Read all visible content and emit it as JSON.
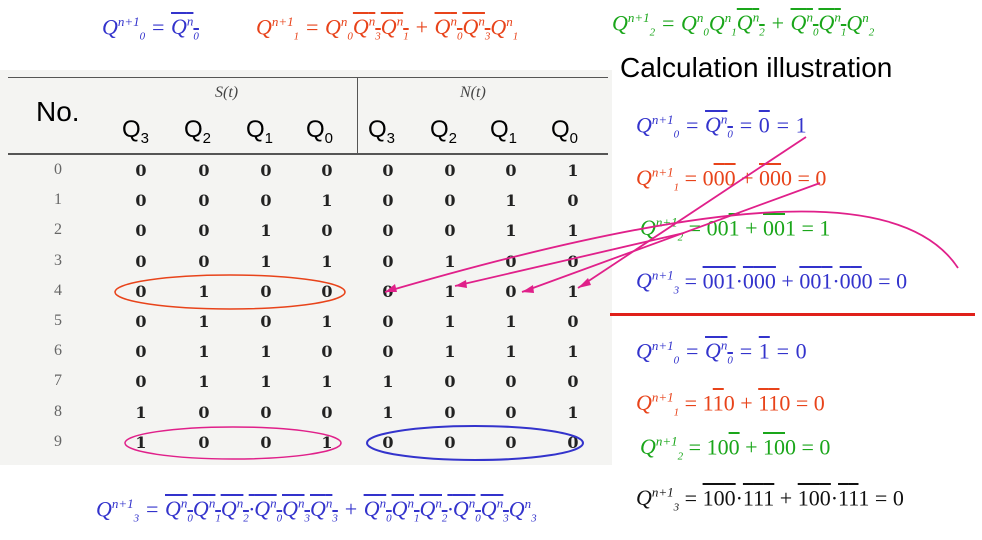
{
  "top_equations": {
    "q0": {
      "lhs": "Q0n+1",
      "rhs": "¬Q0n"
    },
    "q1": {
      "lhs": "Q1n+1",
      "rhs": "Q0n·¬Q3n·¬Q1n + ¬(Q0n·¬Q3n)·Q1n"
    },
    "q2": {
      "lhs": "Q2n+1",
      "rhs": "Q0n·Q1n·¬Q2n + ¬(Q0n·Q1n)·Q2n"
    }
  },
  "calc_title": "Calculation illustration",
  "table": {
    "no_label": "No.",
    "group_s": "S(t)",
    "group_n": "N(t)",
    "columns": [
      "Q3",
      "Q2",
      "Q1",
      "Q0",
      "Q3",
      "Q2",
      "Q1",
      "Q0"
    ],
    "rows": [
      {
        "no": "0",
        "s": [
          "0",
          "0",
          "0",
          "0"
        ],
        "n": [
          "0",
          "0",
          "0",
          "1"
        ]
      },
      {
        "no": "1",
        "s": [
          "0",
          "0",
          "0",
          "1"
        ],
        "n": [
          "0",
          "0",
          "1",
          "0"
        ]
      },
      {
        "no": "2",
        "s": [
          "0",
          "0",
          "1",
          "0"
        ],
        "n": [
          "0",
          "0",
          "1",
          "1"
        ]
      },
      {
        "no": "3",
        "s": [
          "0",
          "0",
          "1",
          "1"
        ],
        "n": [
          "0",
          "1",
          "0",
          "0"
        ]
      },
      {
        "no": "4",
        "s": [
          "0",
          "1",
          "0",
          "0"
        ],
        "n": [
          "0",
          "1",
          "0",
          "1"
        ]
      },
      {
        "no": "5",
        "s": [
          "0",
          "1",
          "0",
          "1"
        ],
        "n": [
          "0",
          "1",
          "1",
          "0"
        ]
      },
      {
        "no": "6",
        "s": [
          "0",
          "1",
          "1",
          "0"
        ],
        "n": [
          "0",
          "1",
          "1",
          "1"
        ]
      },
      {
        "no": "7",
        "s": [
          "0",
          "1",
          "1",
          "1"
        ],
        "n": [
          "1",
          "0",
          "0",
          "0"
        ]
      },
      {
        "no": "8",
        "s": [
          "1",
          "0",
          "0",
          "0"
        ],
        "n": [
          "1",
          "0",
          "0",
          "1"
        ]
      },
      {
        "no": "9",
        "s": [
          "1",
          "0",
          "0",
          "1"
        ],
        "n": [
          "0",
          "0",
          "0",
          "0"
        ]
      }
    ]
  },
  "calc_upper": [
    {
      "color": "blue",
      "text": "= 0̄ = 1"
    },
    {
      "color": "red",
      "text": "= 000 + 000 = 0"
    },
    {
      "color": "green",
      "text": "= 001 + 001 = 1"
    },
    {
      "color": "blue",
      "text": "= 001·000 + 001·000 = 0"
    }
  ],
  "calc_lower": [
    {
      "color": "blue",
      "text": "= 1̄ = 0"
    },
    {
      "color": "red",
      "text": "= 110 + 110 = 0"
    },
    {
      "color": "green",
      "text": "= 100 + 100 = 0"
    },
    {
      "color": "black",
      "text": "= 100·111 + 100·111 = 0"
    }
  ],
  "bottom_equation": {
    "lhs": "Q3n+1",
    "rhs": "¬(Q0n Q1n ¬Q2n)·¬(Q0n ¬Q3n)·¬Q3n + ¬(Q0n Q1n ¬Q2n)·¬(Q0n ¬Q3n)·Q3n"
  },
  "colors": {
    "blue": "#3333cc",
    "red": "#e8431a",
    "green": "#1aa61a",
    "magenta": "#e0208a",
    "divider": "#e0201a"
  }
}
